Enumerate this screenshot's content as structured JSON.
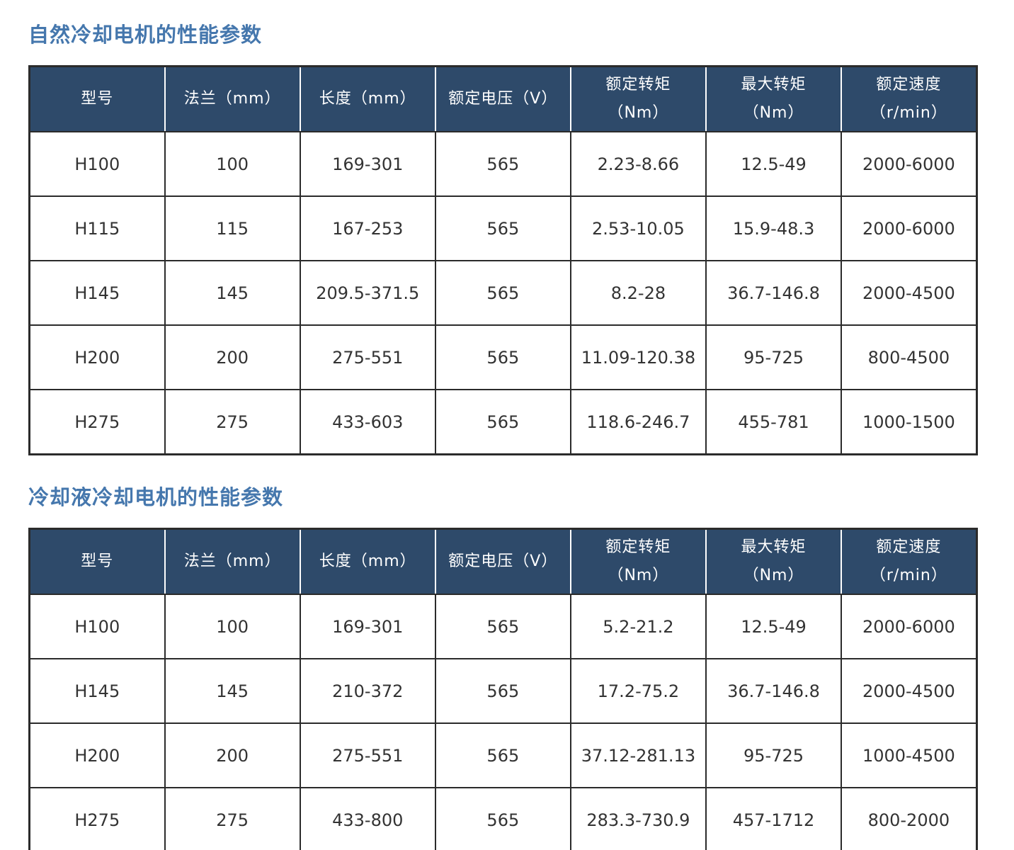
{
  "colors": {
    "page_bg": "#ffffff",
    "header_bg": "#2e4a6a",
    "title_color": "#4577ad",
    "border_dark": "#2b2b2b",
    "cell_text": "#333333"
  },
  "sections": [
    {
      "title": "自然冷却电机的性能参数",
      "table": {
        "headers": [
          {
            "line1": "型号"
          },
          {
            "line1": "法兰（mm）"
          },
          {
            "line1": "长度（mm）"
          },
          {
            "line1": "额定电压（V）"
          },
          {
            "line1": "额定转矩",
            "line2": "（Nm）"
          },
          {
            "line1": "最大转矩",
            "line2": "（Nm）"
          },
          {
            "line1": "额定速度",
            "line2": "（r/min）"
          }
        ],
        "rows": [
          [
            "H100",
            "100",
            "169-301",
            "565",
            "2.23-8.66",
            "12.5-49",
            "2000-6000"
          ],
          [
            "H115",
            "115",
            "167-253",
            "565",
            "2.53-10.05",
            "15.9-48.3",
            "2000-6000"
          ],
          [
            "H145",
            "145",
            "209.5-371.5",
            "565",
            "8.2-28",
            "36.7-146.8",
            "2000-4500"
          ],
          [
            "H200",
            "200",
            "275-551",
            "565",
            "11.09-120.38",
            "95-725",
            "800-4500"
          ],
          [
            "H275",
            "275",
            "433-603",
            "565",
            "118.6-246.7",
            "455-781",
            "1000-1500"
          ]
        ]
      }
    },
    {
      "title": "冷却液冷却电机的性能参数",
      "table": {
        "headers": [
          {
            "line1": "型号"
          },
          {
            "line1": "法兰（mm）"
          },
          {
            "line1": "长度（mm）"
          },
          {
            "line1": "额定电压（V）"
          },
          {
            "line1": "额定转矩",
            "line2": "（Nm）"
          },
          {
            "line1": "最大转矩",
            "line2": "（Nm）"
          },
          {
            "line1": "额定速度",
            "line2": "（r/min）"
          }
        ],
        "rows": [
          [
            "H100",
            "100",
            "169-301",
            "565",
            "5.2-21.2",
            "12.5-49",
            "2000-6000"
          ],
          [
            "H145",
            "145",
            "210-372",
            "565",
            "17.2-75.2",
            "36.7-146.8",
            "2000-4500"
          ],
          [
            "H200",
            "200",
            "275-551",
            "565",
            "37.12-281.13",
            "95-725",
            "1000-4500"
          ],
          [
            "H275",
            "275",
            "433-800",
            "565",
            "283.3-730.9",
            "457-1712",
            "800-2000"
          ]
        ]
      }
    }
  ]
}
